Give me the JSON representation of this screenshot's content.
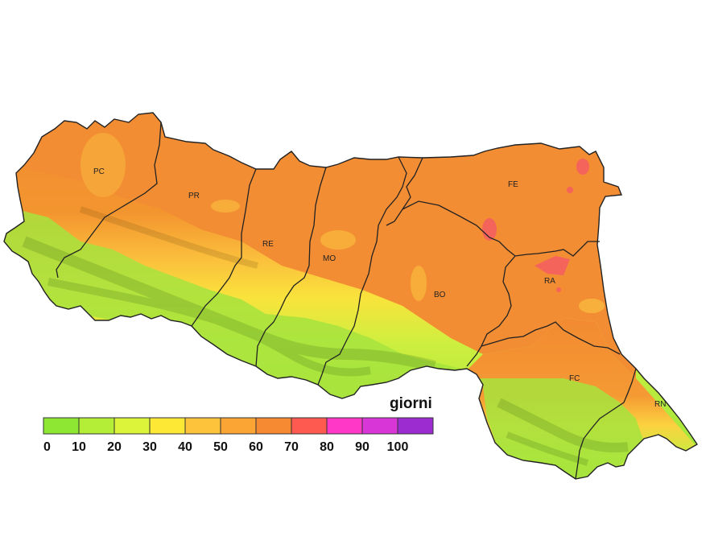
{
  "legend": {
    "unit_label": "giorni",
    "tick_labels": [
      "0",
      "10",
      "20",
      "30",
      "40",
      "50",
      "60",
      "70",
      "80",
      "90",
      "100"
    ],
    "colors": [
      "#8ee833",
      "#b4ee36",
      "#dcf43a",
      "#fde835",
      "#fdc33a",
      "#fba535",
      "#f68a32",
      "#ff5a50",
      "#ff38c8",
      "#d936d8",
      "#9c2bd0"
    ]
  },
  "provinces": [
    {
      "code": "PC"
    },
    {
      "code": "PR"
    },
    {
      "code": "RE"
    },
    {
      "code": "MO"
    },
    {
      "code": "BO"
    },
    {
      "code": "FE"
    },
    {
      "code": "RA"
    },
    {
      "code": "FC"
    },
    {
      "code": "RN"
    }
  ],
  "colors": {
    "plain": "#f28f35",
    "hills": "#fcc53d",
    "mountains": "#a6e63c",
    "border": "#222222"
  }
}
